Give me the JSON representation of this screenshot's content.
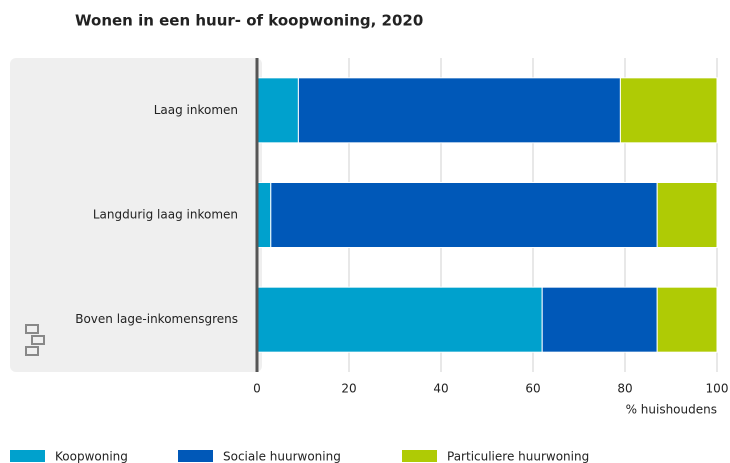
{
  "chart_data": {
    "type": "stacked_barh",
    "title": "Wonen in een huur- of koopwoning, 2020",
    "x_label": "% huishoudens",
    "categories": [
      "Laag inkomen",
      "Langdurig laag inkomen",
      "Boven lage-inkomensgrens"
    ],
    "series": [
      {
        "name": "Koopwoning",
        "color": "#00a1cd",
        "values": [
          9,
          3,
          62
        ]
      },
      {
        "name": "Sociale huurwoning",
        "color": "#0058b8",
        "values": [
          70,
          84,
          25
        ]
      },
      {
        "name": "Particuliere huurwoning",
        "color": "#afcb05",
        "values": [
          21,
          13,
          13
        ]
      }
    ],
    "xlim": [
      0,
      100
    ],
    "xticks": [
      0,
      20,
      40,
      60,
      80,
      100
    ],
    "grid": true
  }
}
